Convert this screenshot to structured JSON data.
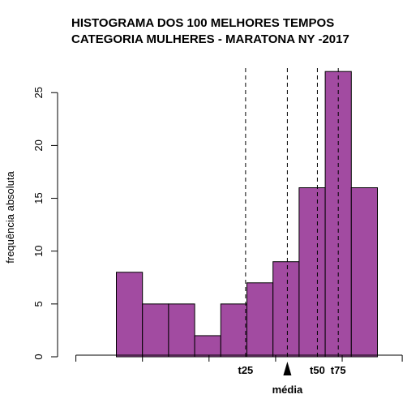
{
  "chart_data": {
    "type": "bar",
    "title_lines": [
      "HISTOGRAMA DOS 100 MELHORES TEMPOS",
      "CATEGORIA MULHERES - MARATONA NY -2017"
    ],
    "ylabel": "frequência absoluta",
    "ylim": [
      0,
      28
    ],
    "yticks": [
      0,
      5,
      10,
      15,
      20,
      25
    ],
    "bar_color": "#a24ba1",
    "bins": [
      {
        "start": 0,
        "end": 1,
        "value": 8
      },
      {
        "start": 1,
        "end": 2,
        "value": 5
      },
      {
        "start": 2,
        "end": 3,
        "value": 5
      },
      {
        "start": 3,
        "end": 4,
        "value": 2
      },
      {
        "start": 4,
        "end": 5,
        "value": 5
      },
      {
        "start": 5,
        "end": 6,
        "value": 7
      },
      {
        "start": 6,
        "end": 7,
        "value": 9
      },
      {
        "start": 7,
        "end": 8,
        "value": 16
      },
      {
        "start": 8,
        "end": 9,
        "value": 27
      },
      {
        "start": 9,
        "end": 10,
        "value": 16
      }
    ],
    "xaxis_range": [
      -1.55,
      10.95
    ],
    "xticks": [
      -1.55,
      1.0,
      3.55,
      6.1,
      8.65,
      10.95
    ],
    "markers": [
      {
        "label": "t25",
        "x": 4.95
      },
      {
        "label": "média",
        "x": 6.55,
        "arrow": true
      },
      {
        "label": "t50",
        "x": 7.7
      },
      {
        "label": "t75",
        "x": 8.5
      }
    ]
  }
}
